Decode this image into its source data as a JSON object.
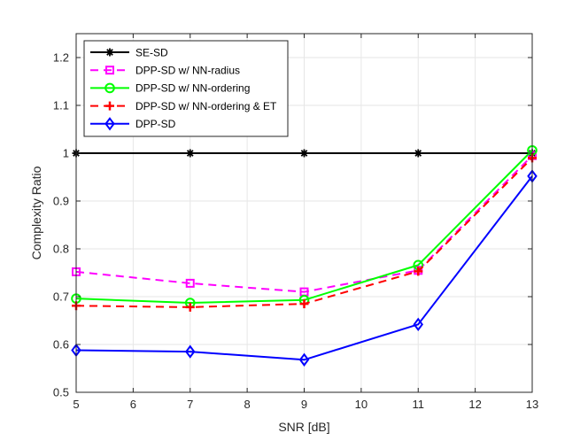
{
  "chart_data": {
    "type": "line",
    "title": "",
    "xlabel": "SNR [dB]",
    "ylabel": "Complexity Ratio",
    "xlim": [
      5,
      13
    ],
    "ylim": [
      0.5,
      1.25
    ],
    "xticks": [
      5,
      6,
      7,
      8,
      9,
      10,
      11,
      12,
      13
    ],
    "yticks": [
      0.5,
      0.6,
      0.7,
      0.8,
      0.9,
      1,
      1.1,
      1.2
    ],
    "xtick_labels": [
      "5",
      "6",
      "7",
      "8",
      "9",
      "10",
      "11",
      "12",
      "13"
    ],
    "ytick_labels": [
      "0.5",
      "0.6",
      "0.7",
      "0.8",
      "0.9",
      "1",
      "1.1",
      "1.2"
    ],
    "grid": true,
    "legend_position": "top-left",
    "x": [
      5,
      7,
      9,
      11,
      13
    ],
    "series": [
      {
        "name": "SE-SD",
        "values": [
          1.0,
          1.0,
          1.0,
          1.0,
          1.0
        ],
        "color": "#000000",
        "marker": "asterisk",
        "dash": "solid"
      },
      {
        "name": "DPP-SD w/ NN-radius",
        "values": [
          0.752,
          0.728,
          0.71,
          0.755,
          0.995
        ],
        "color": "#ff00ff",
        "marker": "square",
        "dash": "dashed"
      },
      {
        "name": "DPP-SD w/ NN-ordering",
        "values": [
          0.696,
          0.687,
          0.693,
          0.766,
          1.006
        ],
        "color": "#00ff00",
        "marker": "circle",
        "dash": "solid"
      },
      {
        "name": "DPP-SD w/ NN-ordering & ET",
        "values": [
          0.681,
          0.678,
          0.685,
          0.753,
          0.99
        ],
        "color": "#ff0000",
        "marker": "plus",
        "dash": "dashed"
      },
      {
        "name": "DPP-SD",
        "values": [
          0.588,
          0.585,
          0.568,
          0.642,
          0.952
        ],
        "color": "#0000ff",
        "marker": "diamond",
        "dash": "solid"
      }
    ]
  }
}
